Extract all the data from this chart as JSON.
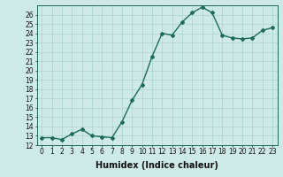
{
  "x": [
    0,
    1,
    2,
    3,
    4,
    5,
    6,
    7,
    8,
    9,
    10,
    11,
    12,
    13,
    14,
    15,
    16,
    17,
    18,
    19,
    20,
    21,
    22,
    23
  ],
  "y": [
    12.8,
    12.8,
    12.6,
    13.2,
    13.7,
    13.0,
    12.9,
    12.8,
    14.5,
    16.8,
    18.5,
    21.5,
    24.0,
    23.8,
    25.2,
    26.2,
    26.8,
    26.2,
    23.8,
    23.5,
    23.4,
    23.5,
    24.3,
    24.6
  ],
  "line_color": "#1a6b5a",
  "marker": "D",
  "marker_size": 2,
  "xlabel": "Humidex (Indice chaleur)",
  "xlim": [
    -0.5,
    23.5
  ],
  "ylim": [
    12,
    27
  ],
  "yticks": [
    12,
    13,
    14,
    15,
    16,
    17,
    18,
    19,
    20,
    21,
    22,
    23,
    24,
    25,
    26
  ],
  "xticks": [
    0,
    1,
    2,
    3,
    4,
    5,
    6,
    7,
    8,
    9,
    10,
    11,
    12,
    13,
    14,
    15,
    16,
    17,
    18,
    19,
    20,
    21,
    22,
    23
  ],
  "bg_color": "#ceeae8",
  "grid_color": "#aad4d0",
  "tick_label_fontsize": 5.5,
  "xlabel_fontsize": 7
}
